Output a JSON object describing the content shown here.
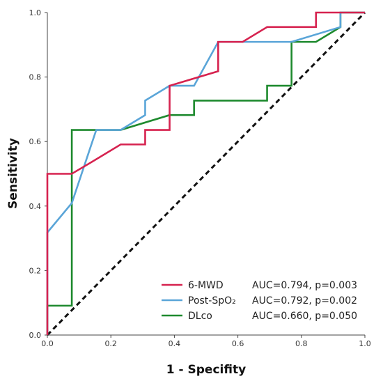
{
  "chart_data": {
    "type": "line",
    "title": "",
    "xlabel": "1 - Specifity",
    "ylabel": "Sensitivity",
    "xlim": [
      0,
      1
    ],
    "ylim": [
      0,
      1
    ],
    "x_ticks": [
      "0.0",
      "0.2",
      "0.4",
      "0.6",
      "0.8",
      "1.0"
    ],
    "y_ticks": [
      "0.0",
      "0.2",
      "0.4",
      "0.6",
      "0.8",
      "1.0"
    ],
    "grid": false,
    "legend_position": "bottom-right",
    "series": [
      {
        "name": "6-MWD",
        "auc_text": "AUC=0.794, p=0.003",
        "color": "#d6224f",
        "points": [
          [
            0,
            0
          ],
          [
            0,
            0.5
          ],
          [
            0.077,
            0.5
          ],
          [
            0.154,
            0.545
          ],
          [
            0.231,
            0.591
          ],
          [
            0.308,
            0.591
          ],
          [
            0.308,
            0.636
          ],
          [
            0.385,
            0.636
          ],
          [
            0.385,
            0.773
          ],
          [
            0.538,
            0.818
          ],
          [
            0.538,
            0.909
          ],
          [
            0.615,
            0.909
          ],
          [
            0.692,
            0.955
          ],
          [
            0.846,
            0.955
          ],
          [
            0.846,
            1.0
          ],
          [
            1.0,
            1.0
          ]
        ]
      },
      {
        "name": "Post-SpO₂",
        "auc_text": "AUC=0.792, p=0.002",
        "color": "#5aa5d8",
        "points": [
          [
            0,
            0
          ],
          [
            0,
            0.318
          ],
          [
            0.077,
            0.409
          ],
          [
            0.154,
            0.636
          ],
          [
            0.231,
            0.636
          ],
          [
            0.308,
            0.682
          ],
          [
            0.308,
            0.727
          ],
          [
            0.385,
            0.773
          ],
          [
            0.462,
            0.773
          ],
          [
            0.538,
            0.909
          ],
          [
            0.769,
            0.909
          ],
          [
            0.923,
            0.955
          ],
          [
            0.923,
            1.0
          ],
          [
            1.0,
            1.0
          ]
        ]
      },
      {
        "name": "DLco",
        "auc_text": "AUC=0.660, p=0.050",
        "color": "#1e8a2e",
        "points": [
          [
            0,
            0
          ],
          [
            0,
            0.091
          ],
          [
            0.077,
            0.091
          ],
          [
            0.077,
            0.636
          ],
          [
            0.231,
            0.636
          ],
          [
            0.385,
            0.682
          ],
          [
            0.462,
            0.682
          ],
          [
            0.462,
            0.727
          ],
          [
            0.692,
            0.727
          ],
          [
            0.692,
            0.773
          ],
          [
            0.769,
            0.773
          ],
          [
            0.769,
            0.909
          ],
          [
            0.846,
            0.909
          ],
          [
            0.923,
            0.955
          ],
          [
            0.923,
            1.0
          ],
          [
            1.0,
            1.0
          ]
        ]
      }
    ],
    "reference_line": {
      "style": "dashed",
      "color": "#111111",
      "points": [
        [
          0,
          0
        ],
        [
          1,
          1
        ]
      ]
    }
  }
}
